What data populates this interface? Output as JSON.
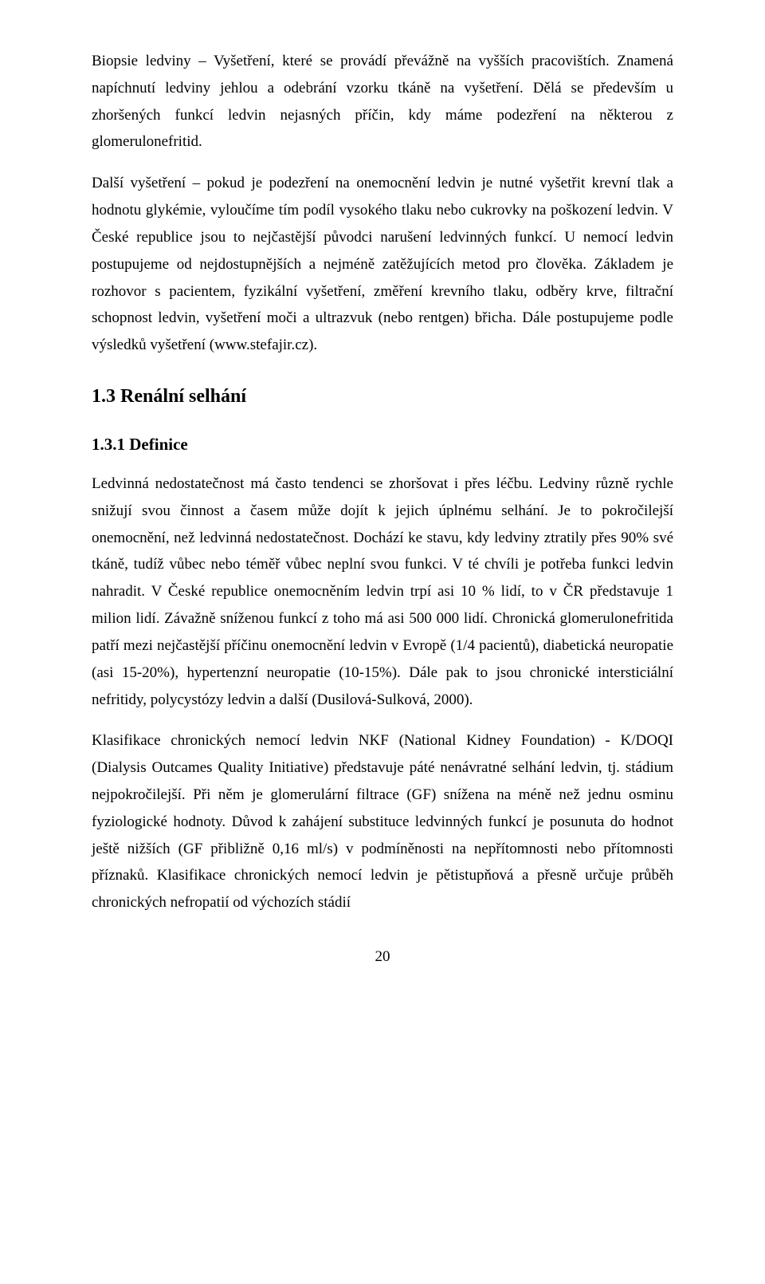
{
  "para1": "Biopsie ledviny – Vyšetření, které se provádí převážně na vyšších pracovištích. Znamená napíchnutí ledviny jehlou a odebrání vzorku tkáně na vyšetření. Dělá se především u zhoršených funkcí ledvin nejasných příčin, kdy máme podezření na některou z glomerulonefritid.",
  "para2": "Další vyšetření – pokud je podezření na onemocnění ledvin je nutné vyšetřit krevní tlak a hodnotu glykémie, vyloučíme tím podíl vysokého tlaku nebo cukrovky na poškození ledvin. V České republice jsou to nejčastější původci narušení ledvinných funkcí. U nemocí ledvin postupujeme od nejdostupnějších a nejméně zatěžujících metod pro člověka. Základem je rozhovor s pacientem, fyzikální vyšetření, změření krevního tlaku, odběry krve, filtrační schopnost ledvin, vyšetření moči a ultrazvuk (nebo rentgen) břicha. Dále postupujeme podle výsledků vyšetření (www.stefajir.cz).",
  "heading2": "1.3 Renální selhání",
  "heading3": "1.3.1 Definice",
  "para3": "Ledvinná nedostatečnost má často tendenci se zhoršovat i přes léčbu. Ledviny různě rychle snižují svou činnost a časem může dojít k jejich úplnému selhání. Je to pokročilejší onemocnění, než ledvinná nedostatečnost. Dochází ke stavu, kdy ledviny ztratily přes 90% své tkáně, tudíž vůbec nebo téměř vůbec neplní svou funkci. V té chvíli je potřeba funkci ledvin nahradit. V České republice onemocněním ledvin trpí asi 10 % lidí, to v ČR představuje 1 milion lidí. Závažně sníženou funkcí z toho má asi 500 000 lidí. Chronická glomerulonefritida patří mezi nejčastější příčinu onemocnění ledvin v Evropě (1/4 pacientů), diabetická neuropatie (asi 15-20%), hypertenzní neuropatie (10-15%). Dále pak to jsou chronické intersticiální nefritidy, polycystózy ledvin a další (Dusilová-Sulková, 2000).",
  "para4": "Klasifikace chronických nemocí ledvin NKF (National Kidney Foundation) - K/DOQI (Dialysis Outcames Quality Initiative) představuje páté nenávratné selhání ledvin, tj. stádium nejpokročilejší. Při něm je glomerulární filtrace (GF) snížena na méně než jednu osminu fyziologické hodnoty. Důvod k zahájení substituce ledvinných funkcí je posunuta do hodnot ještě nižších (GF přibližně 0,16 ml/s) v podmíněnosti na nepřítomnosti nebo přítomnosti příznaků. Klasifikace chronických nemocí ledvin je pětistupňová a přesně určuje průběh chronických nefropatií od výchozích stádií",
  "pageNumber": "20"
}
